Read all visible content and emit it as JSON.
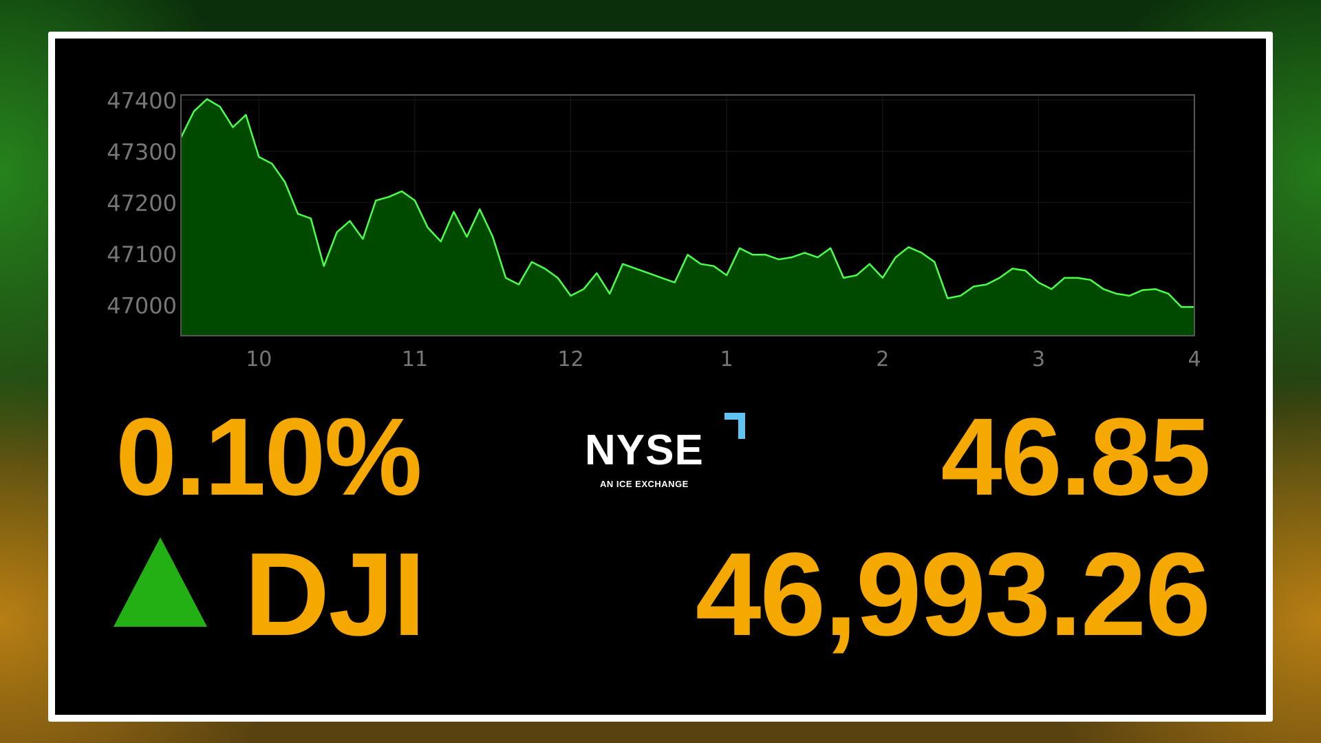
{
  "quote": {
    "percent_change": "0.10%",
    "direction": "up",
    "symbol": "DJI",
    "point_change": "46.85",
    "price": "46,993.26"
  },
  "logo": {
    "name": "NYSE",
    "tagline": "AN ICE EXCHANGE"
  },
  "colors": {
    "accent": "#f5a800",
    "up": "#22b014",
    "line": "#4cff4c",
    "fill": "#004a00",
    "logo_mark": "#5fc4f2"
  },
  "chart_data": {
    "type": "area",
    "title": "",
    "xlabel": "",
    "ylabel": "",
    "grid": true,
    "ylim": [
      46940,
      47410
    ],
    "xlim": [
      "09:30",
      "16:00"
    ],
    "y_ticks": [
      47000,
      47100,
      47200,
      47300,
      47400
    ],
    "y_tick_labels": [
      "47000",
      "47100",
      "47200",
      "47300",
      "47400"
    ],
    "x_ticks": [
      "10:00",
      "11:00",
      "12:00",
      "13:00",
      "14:00",
      "15:00",
      "16:00"
    ],
    "x_tick_labels": [
      "10",
      "11",
      "12",
      "1",
      "2",
      "3",
      "4"
    ],
    "x": [
      "09:30",
      "09:35",
      "09:40",
      "09:45",
      "09:50",
      "09:55",
      "10:00",
      "10:05",
      "10:10",
      "10:15",
      "10:20",
      "10:25",
      "10:30",
      "10:35",
      "10:40",
      "10:45",
      "10:50",
      "10:55",
      "11:00",
      "11:05",
      "11:10",
      "11:15",
      "11:20",
      "11:25",
      "11:30",
      "11:35",
      "11:40",
      "11:45",
      "11:50",
      "11:55",
      "12:00",
      "12:05",
      "12:10",
      "12:15",
      "12:20",
      "12:25",
      "12:30",
      "12:35",
      "12:40",
      "12:45",
      "12:50",
      "12:55",
      "13:00",
      "13:05",
      "13:10",
      "13:15",
      "13:20",
      "13:25",
      "13:30",
      "13:35",
      "13:40",
      "13:45",
      "13:50",
      "13:55",
      "14:00",
      "14:05",
      "14:10",
      "14:15",
      "14:20",
      "14:25",
      "14:30",
      "14:35",
      "14:40",
      "14:45",
      "14:50",
      "14:55",
      "15:00",
      "15:05",
      "15:10",
      "15:15",
      "15:20",
      "15:25",
      "15:30",
      "15:35",
      "15:40",
      "15:45",
      "15:50",
      "15:55",
      "16:00"
    ],
    "values": [
      47327,
      47378,
      47402,
      47387,
      47347,
      47371,
      47289,
      47276,
      47240,
      47178,
      47169,
      47076,
      47142,
      47164,
      47129,
      47204,
      47211,
      47222,
      47204,
      47151,
      47124,
      47182,
      47133,
      47187,
      47133,
      47053,
      47040,
      47084,
      47071,
      47053,
      47018,
      47031,
      47062,
      47022,
      47080,
      47071,
      47062,
      47053,
      47044,
      47098,
      47080,
      47076,
      47058,
      47111,
      47098,
      47098,
      47089,
      47093,
      47102,
      47093,
      47111,
      47053,
      47058,
      47080,
      47053,
      47093,
      47113,
      47102,
      47084,
      47013,
      47018,
      47036,
      47040,
      47053,
      47071,
      47067,
      47044,
      47031,
      47053,
      47053,
      47049,
      47031,
      47022,
      47018,
      47029,
      47031,
      47022,
      46996,
      46996
    ]
  }
}
